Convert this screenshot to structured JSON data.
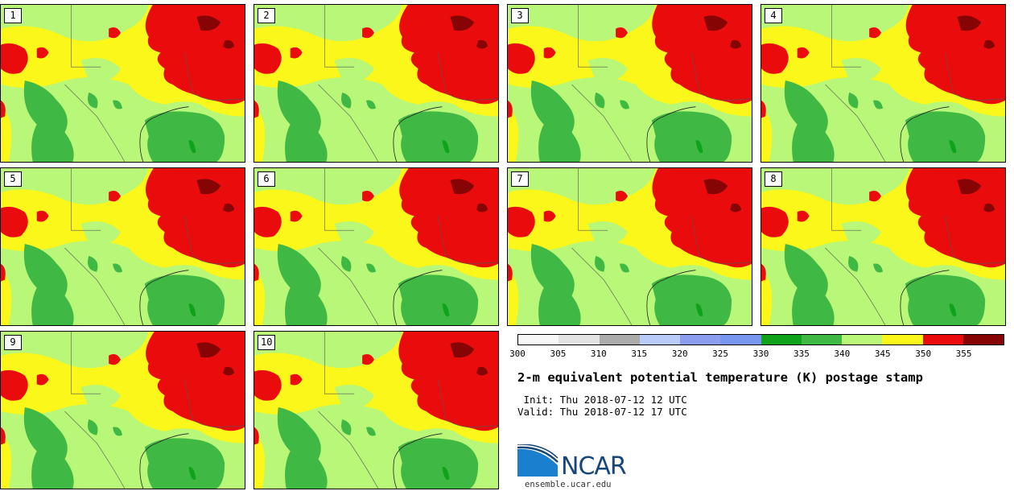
{
  "panels": [
    {
      "label": "1"
    },
    {
      "label": "2"
    },
    {
      "label": "3"
    },
    {
      "label": "4"
    },
    {
      "label": "5"
    },
    {
      "label": "6"
    },
    {
      "label": "7"
    },
    {
      "label": "8"
    },
    {
      "label": "9"
    },
    {
      "label": "10"
    }
  ],
  "colorbar": {
    "ticks": [
      "300",
      "305",
      "310",
      "315",
      "320",
      "325",
      "330",
      "335",
      "340",
      "345",
      "350",
      "355"
    ],
    "colors": [
      "#f7f7f7",
      "#e3e3e3",
      "#ababab",
      "#b9cbf9",
      "#8c9df0",
      "#7896ef",
      "#0fa21b",
      "#40b844",
      "#b8f777",
      "#fbf71a",
      "#ea0c0c",
      "#870404"
    ]
  },
  "title": "2-m equivalent potential temperature (K) postage stamp",
  "init": " Init: Thu 2018-07-12 12 UTC",
  "valid": "Valid: Thu 2018-07-12 17 UTC",
  "logo": {
    "text": "NCAR",
    "colors": {
      "blue": "#1a7fcf",
      "navy": "#17467a"
    }
  },
  "site": "ensemble.ucar.edu"
}
